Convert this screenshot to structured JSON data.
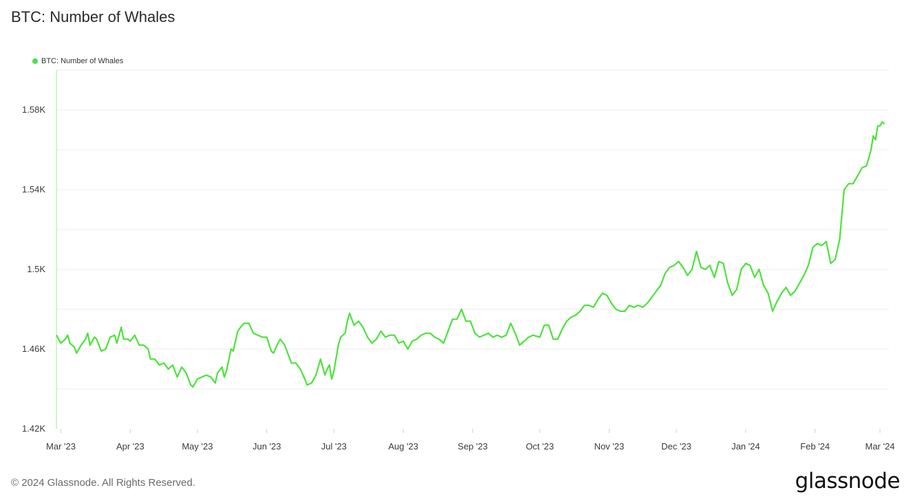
{
  "header": {
    "title": "BTC: Number of Whales"
  },
  "legend": {
    "label": "BTC: Number of Whales",
    "color": "#4ae33a"
  },
  "footer": {
    "copyright": "© 2024 Glassnode. All Rights Reserved.",
    "brand": "glassnode"
  },
  "chart_data": {
    "type": "line",
    "title": "BTC: Number of Whales",
    "xlabel": "",
    "ylabel": "",
    "xlim": [
      "2023-02-27",
      "2024-03-05"
    ],
    "ylim": [
      1420,
      1600
    ],
    "y_ticks": [
      {
        "value": 1420,
        "label": "1.42K"
      },
      {
        "value": 1460,
        "label": "1.46K"
      },
      {
        "value": 1500,
        "label": "1.5K"
      },
      {
        "value": 1540,
        "label": "1.54K"
      },
      {
        "value": 1580,
        "label": "1.58K"
      }
    ],
    "x_ticks": [
      {
        "date": "2023-03-01",
        "label": "Mar '23"
      },
      {
        "date": "2023-04-01",
        "label": "Apr '23"
      },
      {
        "date": "2023-05-01",
        "label": "May '23"
      },
      {
        "date": "2023-06-01",
        "label": "Jun '23"
      },
      {
        "date": "2023-07-01",
        "label": "Jul '23"
      },
      {
        "date": "2023-08-01",
        "label": "Aug '23"
      },
      {
        "date": "2023-09-01",
        "label": "Sep '23"
      },
      {
        "date": "2023-10-01",
        "label": "Oct '23"
      },
      {
        "date": "2023-11-01",
        "label": "Nov '23"
      },
      {
        "date": "2023-12-01",
        "label": "Dec '23"
      },
      {
        "date": "2024-01-01",
        "label": "Jan '24"
      },
      {
        "date": "2024-02-01",
        "label": "Feb '24"
      },
      {
        "date": "2024-03-01",
        "label": "Mar '24"
      }
    ],
    "grid": true,
    "legend_position": "top-left",
    "series": [
      {
        "name": "BTC: Number of Whales",
        "color": "#4ae33a",
        "points": [
          [
            "2023-02-27",
            1467
          ],
          [
            "2023-03-01",
            1463
          ],
          [
            "2023-03-03",
            1465
          ],
          [
            "2023-03-04",
            1467
          ],
          [
            "2023-03-05",
            1463
          ],
          [
            "2023-03-07",
            1461
          ],
          [
            "2023-03-08",
            1458
          ],
          [
            "2023-03-10",
            1462
          ],
          [
            "2023-03-12",
            1465
          ],
          [
            "2023-03-13",
            1468
          ],
          [
            "2023-03-14",
            1462
          ],
          [
            "2023-03-16",
            1466
          ],
          [
            "2023-03-17",
            1465
          ],
          [
            "2023-03-19",
            1459
          ],
          [
            "2023-03-21",
            1460
          ],
          [
            "2023-03-23",
            1466
          ],
          [
            "2023-03-25",
            1467
          ],
          [
            "2023-03-26",
            1463
          ],
          [
            "2023-03-28",
            1471
          ],
          [
            "2023-03-29",
            1465
          ],
          [
            "2023-03-31",
            1465
          ],
          [
            "2023-04-01",
            1464
          ],
          [
            "2023-04-03",
            1467
          ],
          [
            "2023-04-05",
            1462
          ],
          [
            "2023-04-07",
            1462
          ],
          [
            "2023-04-09",
            1460
          ],
          [
            "2023-04-10",
            1455
          ],
          [
            "2023-04-12",
            1455
          ],
          [
            "2023-04-14",
            1452
          ],
          [
            "2023-04-16",
            1453
          ],
          [
            "2023-04-18",
            1450
          ],
          [
            "2023-04-20",
            1452
          ],
          [
            "2023-04-22",
            1446
          ],
          [
            "2023-04-24",
            1451
          ],
          [
            "2023-04-26",
            1448
          ],
          [
            "2023-04-28",
            1442
          ],
          [
            "2023-04-29",
            1441
          ],
          [
            "2023-05-01",
            1445
          ],
          [
            "2023-05-03",
            1446
          ],
          [
            "2023-05-05",
            1447
          ],
          [
            "2023-05-07",
            1446
          ],
          [
            "2023-05-09",
            1443
          ],
          [
            "2023-05-10",
            1448
          ],
          [
            "2023-05-12",
            1451
          ],
          [
            "2023-05-13",
            1446
          ],
          [
            "2023-05-14",
            1449
          ],
          [
            "2023-05-16",
            1460
          ],
          [
            "2023-05-17",
            1459
          ],
          [
            "2023-05-19",
            1469
          ],
          [
            "2023-05-21",
            1472
          ],
          [
            "2023-05-22",
            1473
          ],
          [
            "2023-05-24",
            1473
          ],
          [
            "2023-05-26",
            1468
          ],
          [
            "2023-05-28",
            1467
          ],
          [
            "2023-05-30",
            1466
          ],
          [
            "2023-06-01",
            1466
          ],
          [
            "2023-06-03",
            1459
          ],
          [
            "2023-06-04",
            1458
          ],
          [
            "2023-06-06",
            1463
          ],
          [
            "2023-06-07",
            1465
          ],
          [
            "2023-06-09",
            1462
          ],
          [
            "2023-06-11",
            1456
          ],
          [
            "2023-06-12",
            1453
          ],
          [
            "2023-06-14",
            1453
          ],
          [
            "2023-06-16",
            1450
          ],
          [
            "2023-06-18",
            1445
          ],
          [
            "2023-06-19",
            1442
          ],
          [
            "2023-06-21",
            1443
          ],
          [
            "2023-06-23",
            1447
          ],
          [
            "2023-06-25",
            1455
          ],
          [
            "2023-06-27",
            1447
          ],
          [
            "2023-06-28",
            1450
          ],
          [
            "2023-06-29",
            1452
          ],
          [
            "2023-06-30",
            1445
          ],
          [
            "2023-07-01",
            1449
          ],
          [
            "2023-07-03",
            1462
          ],
          [
            "2023-07-04",
            1466
          ],
          [
            "2023-07-06",
            1468
          ],
          [
            "2023-07-07",
            1474
          ],
          [
            "2023-07-08",
            1478
          ],
          [
            "2023-07-10",
            1472
          ],
          [
            "2023-07-12",
            1474
          ],
          [
            "2023-07-14",
            1471
          ],
          [
            "2023-07-16",
            1466
          ],
          [
            "2023-07-18",
            1463
          ],
          [
            "2023-07-20",
            1465
          ],
          [
            "2023-07-22",
            1469
          ],
          [
            "2023-07-24",
            1466
          ],
          [
            "2023-07-26",
            1467
          ],
          [
            "2023-07-28",
            1467
          ],
          [
            "2023-07-30",
            1463
          ],
          [
            "2023-08-01",
            1464
          ],
          [
            "2023-08-03",
            1460
          ],
          [
            "2023-08-05",
            1464
          ],
          [
            "2023-08-07",
            1465
          ],
          [
            "2023-08-09",
            1467
          ],
          [
            "2023-08-11",
            1468
          ],
          [
            "2023-08-13",
            1468
          ],
          [
            "2023-08-15",
            1466
          ],
          [
            "2023-08-17",
            1465
          ],
          [
            "2023-08-19",
            1463
          ],
          [
            "2023-08-21",
            1469
          ],
          [
            "2023-08-23",
            1475
          ],
          [
            "2023-08-25",
            1475
          ],
          [
            "2023-08-27",
            1480
          ],
          [
            "2023-08-29",
            1474
          ],
          [
            "2023-08-31",
            1474
          ],
          [
            "2023-09-02",
            1468
          ],
          [
            "2023-09-04",
            1466
          ],
          [
            "2023-09-06",
            1467
          ],
          [
            "2023-09-08",
            1468
          ],
          [
            "2023-09-10",
            1466
          ],
          [
            "2023-09-12",
            1467
          ],
          [
            "2023-09-14",
            1466
          ],
          [
            "2023-09-16",
            1467
          ],
          [
            "2023-09-18",
            1473
          ],
          [
            "2023-09-20",
            1468
          ],
          [
            "2023-09-22",
            1462
          ],
          [
            "2023-09-24",
            1464
          ],
          [
            "2023-09-26",
            1466
          ],
          [
            "2023-09-28",
            1467
          ],
          [
            "2023-10-01",
            1466
          ],
          [
            "2023-10-03",
            1472
          ],
          [
            "2023-10-05",
            1472
          ],
          [
            "2023-10-07",
            1465
          ],
          [
            "2023-10-09",
            1465
          ],
          [
            "2023-10-11",
            1470
          ],
          [
            "2023-10-13",
            1474
          ],
          [
            "2023-10-15",
            1476
          ],
          [
            "2023-10-17",
            1477
          ],
          [
            "2023-10-19",
            1479
          ],
          [
            "2023-10-21",
            1482
          ],
          [
            "2023-10-23",
            1482
          ],
          [
            "2023-10-25",
            1481
          ],
          [
            "2023-10-27",
            1485
          ],
          [
            "2023-10-29",
            1488
          ],
          [
            "2023-10-31",
            1487
          ],
          [
            "2023-11-02",
            1483
          ],
          [
            "2023-11-04",
            1480
          ],
          [
            "2023-11-06",
            1479
          ],
          [
            "2023-11-08",
            1479
          ],
          [
            "2023-11-10",
            1482
          ],
          [
            "2023-11-12",
            1481
          ],
          [
            "2023-11-14",
            1482
          ],
          [
            "2023-11-16",
            1481
          ],
          [
            "2023-11-18",
            1483
          ],
          [
            "2023-11-20",
            1486
          ],
          [
            "2023-11-22",
            1489
          ],
          [
            "2023-11-24",
            1492
          ],
          [
            "2023-11-26",
            1498
          ],
          [
            "2023-11-28",
            1501
          ],
          [
            "2023-11-30",
            1502
          ],
          [
            "2023-12-02",
            1504
          ],
          [
            "2023-12-04",
            1501
          ],
          [
            "2023-12-06",
            1497
          ],
          [
            "2023-12-08",
            1500
          ],
          [
            "2023-12-10",
            1509
          ],
          [
            "2023-12-12",
            1501
          ],
          [
            "2023-12-14",
            1500
          ],
          [
            "2023-12-16",
            1502
          ],
          [
            "2023-12-18",
            1496
          ],
          [
            "2023-12-20",
            1504
          ],
          [
            "2023-12-22",
            1503
          ],
          [
            "2023-12-24",
            1493
          ],
          [
            "2023-12-26",
            1487
          ],
          [
            "2023-12-28",
            1490
          ],
          [
            "2023-12-30",
            1500
          ],
          [
            "2024-01-01",
            1503
          ],
          [
            "2024-01-03",
            1502
          ],
          [
            "2024-01-05",
            1496
          ],
          [
            "2024-01-07",
            1500
          ],
          [
            "2024-01-09",
            1492
          ],
          [
            "2024-01-11",
            1488
          ],
          [
            "2024-01-13",
            1479
          ],
          [
            "2024-01-15",
            1484
          ],
          [
            "2024-01-17",
            1488
          ],
          [
            "2024-01-19",
            1491
          ],
          [
            "2024-01-21",
            1487
          ],
          [
            "2024-01-23",
            1489
          ],
          [
            "2024-01-25",
            1493
          ],
          [
            "2024-01-27",
            1497
          ],
          [
            "2024-01-29",
            1502
          ],
          [
            "2024-01-31",
            1511
          ],
          [
            "2024-02-02",
            1513
          ],
          [
            "2024-02-04",
            1512
          ],
          [
            "2024-02-06",
            1514
          ],
          [
            "2024-02-08",
            1503
          ],
          [
            "2024-02-10",
            1505
          ],
          [
            "2024-02-12",
            1515
          ],
          [
            "2024-02-14",
            1540
          ],
          [
            "2024-02-16",
            1543
          ],
          [
            "2024-02-18",
            1543
          ],
          [
            "2024-02-20",
            1547
          ],
          [
            "2024-02-22",
            1551
          ],
          [
            "2024-02-24",
            1552
          ],
          [
            "2024-02-26",
            1560
          ],
          [
            "2024-02-27",
            1567
          ],
          [
            "2024-02-28",
            1565
          ],
          [
            "2024-02-29",
            1572
          ],
          [
            "2024-03-01",
            1572
          ],
          [
            "2024-03-02",
            1574
          ],
          [
            "2024-03-03",
            1573
          ]
        ]
      }
    ]
  }
}
